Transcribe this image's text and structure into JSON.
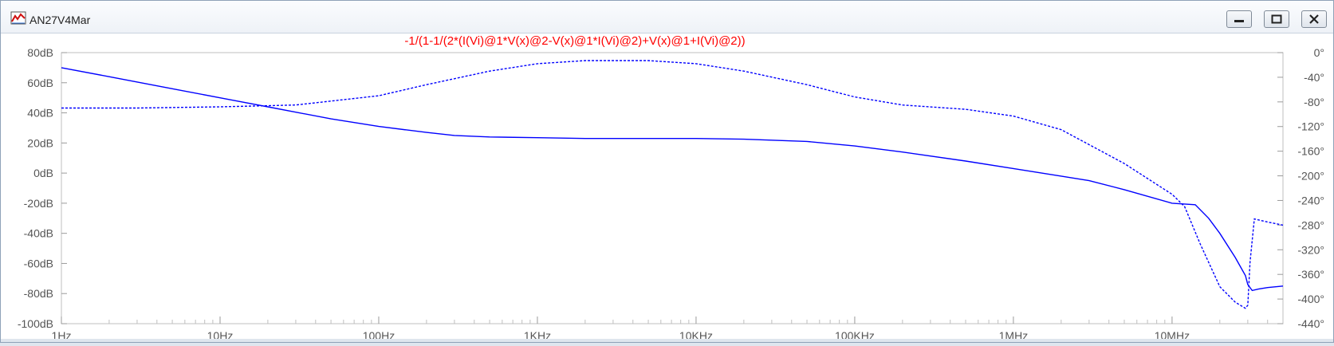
{
  "window": {
    "title": "AN27V4Mar",
    "icon": "waveform-plot-icon",
    "controls": [
      "minimize-icon",
      "maximize-icon",
      "close-icon"
    ]
  },
  "chart_data": {
    "type": "line",
    "title": "-1/(1-1/(2*(I(Vi)@1*V(x)@2-V(x)@1*I(Vi)@2)+V(x)@1+I(Vi)@2))",
    "title_color": "#ff0000",
    "trace_color": "#0000ff",
    "x_axis": {
      "scale": "log",
      "range": [
        1,
        50000000
      ],
      "ticks": [
        1,
        10,
        100,
        1000,
        10000,
        100000,
        1000000,
        10000000
      ],
      "tick_labels": [
        "1Hz",
        "10Hz",
        "100Hz",
        "1KHz",
        "10KHz",
        "100KHz",
        "1MHz",
        "10MHz"
      ]
    },
    "y_left": {
      "range": [
        -100,
        80
      ],
      "ticks": [
        80,
        60,
        40,
        20,
        0,
        -20,
        -40,
        -60,
        -80,
        -100
      ],
      "tick_labels": [
        "80dB",
        "60dB",
        "40dB",
        "20dB",
        "0dB",
        "-20dB",
        "-40dB",
        "-60dB",
        "-80dB",
        "-100dB"
      ]
    },
    "y_right": {
      "range": [
        -440,
        0
      ],
      "ticks": [
        0,
        -40,
        -80,
        -120,
        -160,
        -200,
        -240,
        -280,
        -320,
        -360,
        -400,
        -440
      ],
      "tick_labels": [
        "0°",
        "-40°",
        "-80°",
        "-120°",
        "-160°",
        "-200°",
        "-240°",
        "-280°",
        "-320°",
        "-360°",
        "-400°",
        "-440°"
      ]
    },
    "grid": false,
    "series": [
      {
        "quantity": "magnitude",
        "axis": "left",
        "style": "solid",
        "x": [
          1,
          2,
          5,
          10,
          20,
          50,
          100,
          200,
          300,
          500,
          1000,
          2000,
          5000,
          10000,
          20000,
          50000,
          100000,
          200000,
          500000,
          1000000,
          2000000,
          3000000,
          5000000,
          10000000,
          14000000,
          17000000,
          20000000,
          25000000,
          29000000,
          30000000,
          32000000,
          35000000,
          40000000,
          50000000
        ],
        "y": [
          70,
          64,
          56,
          50,
          44,
          36,
          31,
          27,
          25,
          24,
          23.5,
          23,
          23,
          23,
          22.5,
          21,
          18,
          14,
          8,
          3,
          -2,
          -5,
          -11,
          -20,
          -21,
          -30,
          -40,
          -56,
          -68,
          -74,
          -78,
          -77,
          -76,
          -75
        ]
      },
      {
        "quantity": "phase",
        "axis": "right",
        "style": "dashed",
        "x": [
          1,
          3,
          10,
          30,
          100,
          200,
          500,
          1000,
          2000,
          5000,
          10000,
          20000,
          50000,
          100000,
          200000,
          500000,
          1000000,
          2000000,
          5000000,
          10000000,
          12000000,
          15000000,
          20000000,
          25000000,
          29000000,
          30000000,
          31000000,
          33000000,
          40000000,
          50000000
        ],
        "y": [
          -90,
          -90,
          -88,
          -85,
          -70,
          -52,
          -30,
          -18,
          -13,
          -13,
          -18,
          -30,
          -52,
          -72,
          -85,
          -92,
          -103,
          -125,
          -180,
          -230,
          -250,
          -310,
          -380,
          -405,
          -415,
          -410,
          -340,
          -270,
          -275,
          -280
        ]
      }
    ]
  }
}
